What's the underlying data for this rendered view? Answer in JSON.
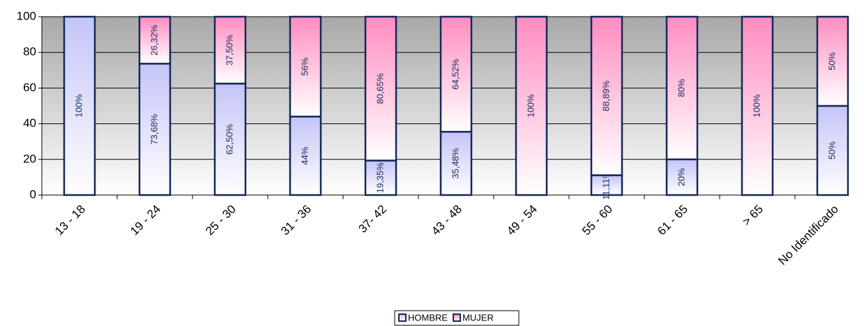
{
  "chart_data": {
    "type": "stacked_bar",
    "categories": [
      "13 - 18",
      "19 - 24",
      "25 - 30",
      "31 - 36",
      "37- 42",
      "43 - 48",
      "49 - 54",
      "55 - 60",
      "61 - 65",
      "> 65",
      "No Identificado"
    ],
    "series": [
      {
        "name": "HOMBRE",
        "color": "#c4c4f8",
        "values": [
          100,
          73.68,
          62.5,
          44,
          19.35,
          35.48,
          0,
          11.11,
          20,
          0,
          50
        ],
        "value_labels": [
          "100%",
          "73,68%",
          "62,50%",
          "44%",
          "19,35%",
          "35,48%",
          null,
          "11,11%",
          "20%",
          null,
          "50%"
        ]
      },
      {
        "name": "MUJER",
        "color": "#ff8cc0",
        "values": [
          0,
          26.32,
          37.5,
          56,
          80.65,
          64.52,
          100,
          88.89,
          80,
          100,
          50
        ],
        "value_labels": [
          null,
          "26,32%",
          "37,50%",
          "56%",
          "80,65%",
          "64,52%",
          "100%",
          "88,89%",
          "80%",
          "100%",
          "50%"
        ]
      }
    ],
    "ylim": [
      0,
      100
    ],
    "yticks": [
      0,
      20,
      40,
      60,
      80,
      100
    ],
    "grid": true,
    "legend": "bottom"
  }
}
